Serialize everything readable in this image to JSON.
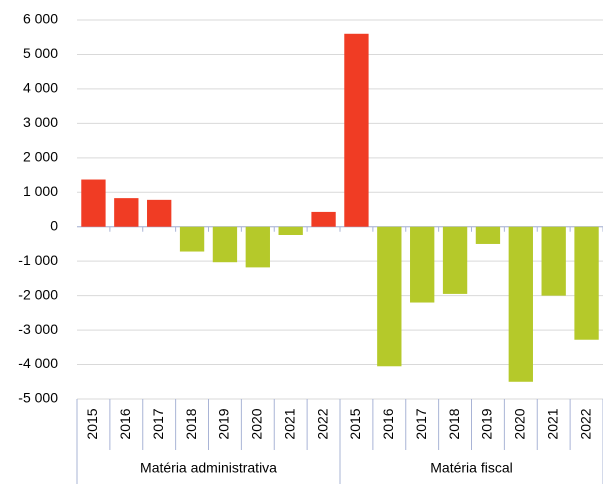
{
  "chart_data": {
    "type": "bar",
    "groups": [
      {
        "name": "Matéria administrativa",
        "categories": [
          "2015",
          "2016",
          "2017",
          "2018",
          "2019",
          "2020",
          "2021",
          "2022"
        ],
        "values": [
          1370,
          830,
          780,
          -720,
          -1030,
          -1180,
          -240,
          430
        ]
      },
      {
        "name": "Matéria fiscal",
        "categories": [
          "2015",
          "2016",
          "2017",
          "2018",
          "2019",
          "2020",
          "2021",
          "2022"
        ],
        "values": [
          5600,
          -4050,
          -2200,
          -1950,
          -500,
          -4500,
          -2000,
          -3280
        ]
      }
    ],
    "positive_color": "#f03c24",
    "negative_color": "#b5c92a",
    "ylim": [
      -5000,
      6000
    ],
    "yticks": [
      {
        "value": -5000,
        "label": "-5 000"
      },
      {
        "value": -4000,
        "label": "-4 000"
      },
      {
        "value": -3000,
        "label": "-3 000"
      },
      {
        "value": -2000,
        "label": "-2 000"
      },
      {
        "value": -1000,
        "label": "-1 000"
      },
      0,
      {
        "value": 1000,
        "label": "1 000"
      },
      {
        "value": 2000,
        "label": "2 000"
      },
      {
        "value": 3000,
        "label": "3 000"
      },
      {
        "value": 4000,
        "label": "4 000"
      },
      {
        "value": 5000,
        "label": "5 000"
      },
      {
        "value": 6000,
        "label": "6 000"
      }
    ],
    "grid": true
  }
}
